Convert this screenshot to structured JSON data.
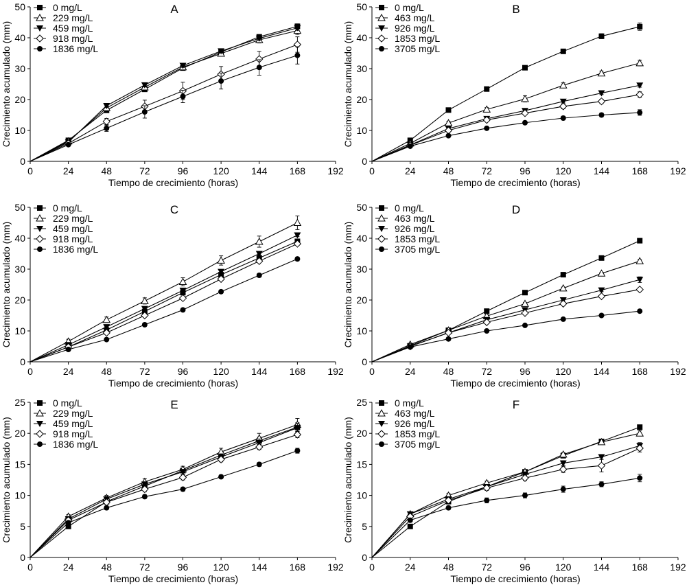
{
  "chart_data": [
    {
      "type": "line",
      "title": "A",
      "xlabel": "Tiempo de crecimiento (horas)",
      "ylabel": "Crecimiento acumulado (mm)",
      "xlim": [
        0,
        192
      ],
      "xticks": [
        0,
        24,
        48,
        72,
        96,
        120,
        144,
        168,
        192
      ],
      "ylim": [
        0,
        50
      ],
      "yticks": [
        0,
        10,
        20,
        30,
        40,
        50
      ],
      "legend_position": "top-left",
      "x": [
        0,
        24,
        48,
        72,
        96,
        120,
        144,
        168
      ],
      "series": [
        {
          "name": "0 mg/L",
          "marker": "square-filled",
          "values": [
            0,
            6.8,
            16.5,
            23.3,
            30.2,
            35.4,
            40.3,
            43.7
          ],
          "err": [
            0,
            0.6,
            0.7,
            0.6,
            0.6,
            0.6,
            0.7,
            0.8
          ]
        },
        {
          "name": "229 mg/L",
          "marker": "triangle-up-open",
          "values": [
            0,
            6.5,
            17.3,
            24.0,
            30.5,
            34.9,
            39.3,
            42.3
          ],
          "err": [
            0,
            0.5,
            0.6,
            0.6,
            0.6,
            0.7,
            1.0,
            1.2
          ]
        },
        {
          "name": "459 mg/L",
          "marker": "triangle-down-filled",
          "values": [
            0,
            6.2,
            18.0,
            24.7,
            31.0,
            35.7,
            39.8,
            43.2
          ],
          "err": [
            0,
            0.5,
            0.6,
            0.6,
            0.6,
            0.6,
            0.7,
            0.8
          ]
        },
        {
          "name": "918 mg/L",
          "marker": "diamond-open",
          "values": [
            0,
            5.8,
            12.9,
            17.8,
            22.8,
            28.2,
            33.1,
            37.8
          ],
          "err": [
            0,
            0.6,
            1.0,
            2.0,
            2.8,
            2.5,
            2.5,
            2.5
          ]
        },
        {
          "name": "1836 mg/L",
          "marker": "circle-filled",
          "values": [
            0,
            5.4,
            10.7,
            16.0,
            21.0,
            26.0,
            30.4,
            34.3
          ],
          "err": [
            0,
            0.5,
            1.0,
            2.0,
            2.0,
            2.6,
            2.5,
            2.8
          ]
        }
      ]
    },
    {
      "type": "line",
      "title": "B",
      "xlabel": "Tiempo de crecimiento (horas)",
      "ylabel": "Crecimiento acumulado (mm)",
      "xlim": [
        0,
        192
      ],
      "xticks": [
        0,
        24,
        48,
        72,
        96,
        120,
        144,
        168,
        192
      ],
      "ylim": [
        0,
        50
      ],
      "yticks": [
        0,
        10,
        20,
        30,
        40,
        50
      ],
      "legend_position": "top-left",
      "x": [
        0,
        24,
        48,
        72,
        96,
        120,
        144,
        168
      ],
      "series": [
        {
          "name": "0 mg/L",
          "marker": "square-filled",
          "values": [
            0,
            6.8,
            16.6,
            23.4,
            30.3,
            35.6,
            40.5,
            43.6
          ],
          "err": [
            0,
            0.7,
            0.6,
            0.5,
            0.5,
            0.5,
            0.8,
            1.2
          ]
        },
        {
          "name": "463 mg/L",
          "marker": "triangle-up-open",
          "values": [
            0,
            5.8,
            12.4,
            16.8,
            20.2,
            24.6,
            28.5,
            31.8
          ],
          "err": [
            0,
            0.6,
            0.6,
            0.6,
            1.0,
            0.8,
            0.7,
            0.9
          ]
        },
        {
          "name": "926 mg/L",
          "marker": "triangle-down-filled",
          "values": [
            0,
            5.3,
            10.6,
            13.8,
            16.4,
            19.4,
            22.1,
            24.6
          ],
          "err": [
            0,
            0.5,
            0.5,
            0.5,
            0.5,
            0.5,
            0.5,
            0.6
          ]
        },
        {
          "name": "1853 mg/L",
          "marker": "diamond-open",
          "values": [
            0,
            5.2,
            10.0,
            13.4,
            15.6,
            17.8,
            19.4,
            21.6
          ],
          "err": [
            0,
            0.5,
            0.5,
            0.5,
            0.6,
            0.8,
            0.7,
            0.9
          ]
        },
        {
          "name": "3705 mg/L",
          "marker": "circle-filled",
          "values": [
            0,
            4.9,
            8.3,
            10.7,
            12.5,
            14.0,
            15.0,
            15.8
          ],
          "err": [
            0,
            0.5,
            0.5,
            0.4,
            0.5,
            0.6,
            0.6,
            0.9
          ]
        }
      ]
    },
    {
      "type": "line",
      "title": "C",
      "xlabel": "Tiempo de crecimiento (horas)",
      "ylabel": "Crecimiento acumulado (mm)",
      "xlim": [
        0,
        192
      ],
      "xticks": [
        0,
        24,
        48,
        72,
        96,
        120,
        144,
        168,
        192
      ],
      "ylim": [
        0,
        50
      ],
      "yticks": [
        0,
        10,
        20,
        30,
        40,
        50
      ],
      "legend_position": "top-left",
      "x": [
        0,
        24,
        48,
        72,
        96,
        120,
        144,
        168
      ],
      "series": [
        {
          "name": "0 mg/L",
          "marker": "square-filled",
          "values": [
            0,
            4.8,
            10.3,
            16.3,
            22.4,
            28.2,
            33.6,
            39.0
          ],
          "err": [
            0,
            0.4,
            0.5,
            0.5,
            0.5,
            0.5,
            0.5,
            0.5
          ]
        },
        {
          "name": "229 mg/L",
          "marker": "triangle-up-open",
          "values": [
            0,
            6.6,
            13.6,
            19.7,
            25.9,
            32.8,
            38.9,
            45.0
          ],
          "err": [
            0,
            0.7,
            0.9,
            1.0,
            1.3,
            1.5,
            1.8,
            2.2
          ]
        },
        {
          "name": "459 mg/L",
          "marker": "triangle-down-filled",
          "values": [
            0,
            5.5,
            11.3,
            17.2,
            23.1,
            29.2,
            35.0,
            41.0
          ],
          "err": [
            0,
            0.4,
            0.5,
            0.5,
            0.5,
            0.5,
            0.5,
            0.5
          ]
        },
        {
          "name": "918 mg/L",
          "marker": "diamond-open",
          "values": [
            0,
            4.8,
            9.4,
            15.0,
            20.6,
            26.8,
            32.6,
            38.2
          ],
          "err": [
            0,
            0.4,
            0.5,
            0.5,
            0.5,
            0.5,
            0.5,
            0.5
          ]
        },
        {
          "name": "1836 mg/L",
          "marker": "circle-filled",
          "values": [
            0,
            4.0,
            7.2,
            12.0,
            16.8,
            22.7,
            28.0,
            33.3
          ],
          "err": [
            0,
            0.4,
            0.4,
            0.5,
            0.5,
            0.5,
            0.6,
            0.6
          ]
        }
      ]
    },
    {
      "type": "line",
      "title": "D",
      "xlabel": "Tiempo de crecimiento (horas)",
      "ylabel": "Crecimiento acumulado (mm)",
      "xlim": [
        0,
        192
      ],
      "xticks": [
        0,
        24,
        48,
        72,
        96,
        120,
        144,
        168,
        192
      ],
      "ylim": [
        0,
        50
      ],
      "yticks": [
        0,
        10,
        20,
        30,
        40,
        50
      ],
      "legend_position": "top-left",
      "x": [
        0,
        24,
        48,
        72,
        96,
        120,
        144,
        168
      ],
      "series": [
        {
          "name": "0 mg/L",
          "marker": "square-filled",
          "values": [
            0,
            5.2,
            10.2,
            16.4,
            22.4,
            28.2,
            33.6,
            39.2
          ],
          "err": [
            0,
            0.3,
            0.3,
            0.3,
            0.4,
            0.4,
            0.4,
            0.4
          ]
        },
        {
          "name": "463 mg/L",
          "marker": "triangle-up-open",
          "values": [
            0,
            5.6,
            10.2,
            14.8,
            18.8,
            23.8,
            28.6,
            32.6
          ],
          "err": [
            0,
            0.3,
            0.3,
            0.4,
            0.4,
            0.4,
            0.4,
            0.5
          ]
        },
        {
          "name": "926 mg/L",
          "marker": "triangle-down-filled",
          "values": [
            0,
            5.0,
            9.4,
            13.6,
            16.8,
            20.0,
            23.2,
            26.6
          ],
          "err": [
            0,
            0.3,
            0.3,
            0.4,
            0.4,
            0.4,
            0.5,
            0.9
          ]
        },
        {
          "name": "1853 mg/L",
          "marker": "diamond-open",
          "values": [
            0,
            5.0,
            9.4,
            12.8,
            15.8,
            18.8,
            21.2,
            23.4
          ],
          "err": [
            0,
            0.3,
            0.3,
            0.4,
            0.4,
            0.4,
            0.4,
            0.5
          ]
        },
        {
          "name": "3705 mg/L",
          "marker": "circle-filled",
          "values": [
            0,
            4.8,
            7.4,
            10.0,
            11.8,
            13.8,
            15.0,
            16.4
          ],
          "err": [
            0,
            0.3,
            0.3,
            0.3,
            0.3,
            0.3,
            0.3,
            0.4
          ]
        }
      ]
    },
    {
      "type": "line",
      "title": "E",
      "xlabel": "Tiempo de crecimiento (horas)",
      "ylabel": "Crecimiento acumulado (mm)",
      "xlim": [
        0,
        192
      ],
      "xticks": [
        0,
        24,
        48,
        72,
        96,
        120,
        144,
        168,
        192
      ],
      "ylim": [
        0,
        25
      ],
      "yticks": [
        0,
        5,
        10,
        15,
        20,
        25
      ],
      "legend_position": "top-left",
      "x": [
        0,
        24,
        48,
        72,
        96,
        120,
        144,
        168
      ],
      "series": [
        {
          "name": "0 mg/L",
          "marker": "square-filled",
          "values": [
            0,
            5.0,
            9.0,
            11.5,
            14.0,
            16.5,
            18.8,
            21.0
          ],
          "err": [
            0,
            0.3,
            0.4,
            0.4,
            0.4,
            0.5,
            0.6,
            0.7
          ]
        },
        {
          "name": "229 mg/L",
          "marker": "triangle-up-open",
          "values": [
            0,
            6.6,
            9.6,
            12.2,
            14.2,
            17.0,
            19.2,
            21.4
          ],
          "err": [
            0,
            0.3,
            0.4,
            0.5,
            0.5,
            0.6,
            0.8,
            1.0
          ]
        },
        {
          "name": "459 mg/L",
          "marker": "triangle-down-filled",
          "values": [
            0,
            6.2,
            9.4,
            11.8,
            13.8,
            16.2,
            18.5,
            20.9
          ],
          "err": [
            0,
            0.3,
            0.4,
            0.4,
            0.4,
            0.5,
            0.6,
            0.7
          ]
        },
        {
          "name": "918 mg/L",
          "marker": "diamond-open",
          "values": [
            0,
            6.0,
            8.9,
            11.0,
            12.9,
            15.8,
            17.8,
            19.8
          ],
          "err": [
            0,
            0.3,
            0.3,
            0.4,
            0.4,
            0.4,
            0.4,
            0.5
          ]
        },
        {
          "name": "1836 mg/L",
          "marker": "circle-filled",
          "values": [
            0,
            5.6,
            8.0,
            9.8,
            11.0,
            13.0,
            15.0,
            17.2
          ],
          "err": [
            0,
            0.3,
            0.3,
            0.3,
            0.3,
            0.3,
            0.3,
            0.4
          ]
        }
      ]
    },
    {
      "type": "line",
      "title": "F",
      "xlabel": "Tiempo de crecimiento (horas)",
      "ylabel": "Crecimiento acumulado (mm)",
      "xlim": [
        0,
        192
      ],
      "xticks": [
        0,
        24,
        48,
        72,
        96,
        120,
        144,
        168,
        192
      ],
      "ylim": [
        0,
        25
      ],
      "yticks": [
        0,
        5,
        10,
        15,
        20,
        25
      ],
      "legend_position": "top-left",
      "x": [
        0,
        24,
        48,
        72,
        96,
        120,
        144,
        168
      ],
      "series": [
        {
          "name": "0 mg/L",
          "marker": "square-filled",
          "values": [
            0,
            5.0,
            9.0,
            11.4,
            13.8,
            16.4,
            18.7,
            21.0
          ],
          "err": [
            0,
            0.2,
            0.3,
            0.3,
            0.3,
            0.3,
            0.3,
            0.3
          ]
        },
        {
          "name": "463 mg/L",
          "marker": "triangle-up-open",
          "values": [
            0,
            7.0,
            10.0,
            12.0,
            13.8,
            16.6,
            18.6,
            20.0
          ],
          "err": [
            0,
            0.3,
            0.3,
            0.3,
            0.3,
            0.3,
            0.3,
            0.4
          ]
        },
        {
          "name": "926 mg/L",
          "marker": "triangle-down-filled",
          "values": [
            0,
            7.0,
            9.4,
            11.4,
            13.4,
            15.2,
            16.2,
            18.0
          ],
          "err": [
            0,
            0.3,
            0.3,
            0.3,
            0.4,
            0.4,
            0.4,
            0.5
          ]
        },
        {
          "name": "1853 mg/L",
          "marker": "diamond-open",
          "values": [
            0,
            6.6,
            9.2,
            11.2,
            12.8,
            14.2,
            14.8,
            17.6
          ],
          "err": [
            0,
            0.3,
            0.3,
            0.4,
            0.4,
            0.5,
            1.0,
            0.6
          ]
        },
        {
          "name": "3705 mg/L",
          "marker": "circle-filled",
          "values": [
            0,
            6.0,
            8.0,
            9.2,
            10.0,
            11.0,
            11.8,
            12.8
          ],
          "err": [
            0,
            0.3,
            0.3,
            0.4,
            0.4,
            0.5,
            0.4,
            0.6
          ]
        }
      ]
    }
  ]
}
